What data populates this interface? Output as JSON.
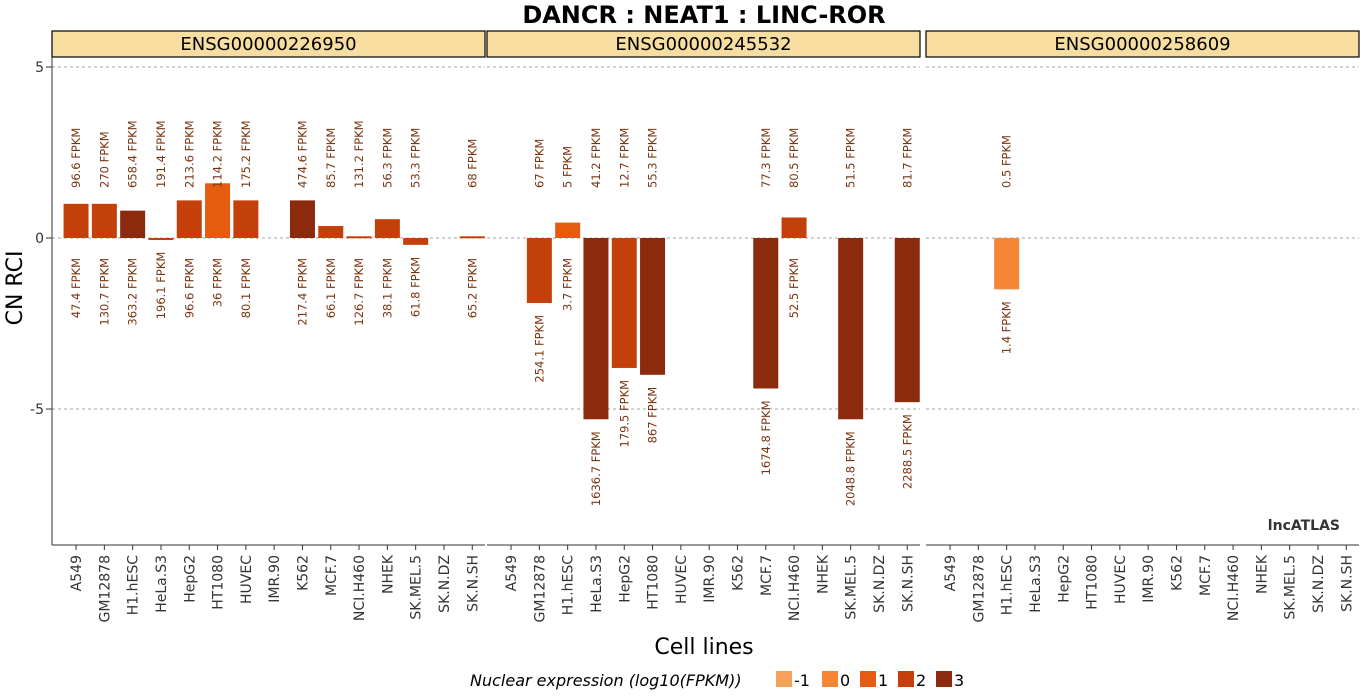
{
  "chart_data": {
    "type": "bar",
    "title": "DANCR : NEAT1 : LINC-ROR",
    "xlabel": "Cell lines",
    "ylabel": "CN RCI",
    "ylim": [
      -9,
      5
    ],
    "yticks": [
      5,
      0,
      -5
    ],
    "ytick_labels": [
      "5",
      "0",
      "-5"
    ],
    "grid": "dashed horizontal at ticks",
    "categories": [
      "A549",
      "GM12878",
      "H1.hESC",
      "HeLa.S3",
      "HepG2",
      "HT1080",
      "HUVEC",
      "IMR.90",
      "K562",
      "MCF.7",
      "NCI.H460",
      "NHEK",
      "SK.MEL.5",
      "SK.N.DZ",
      "SK.N.SH"
    ],
    "panels": [
      {
        "name": "ENSG00000226950",
        "values": [
          1.0,
          1.0,
          0.8,
          -0.05,
          1.1,
          1.6,
          1.1,
          null,
          1.1,
          0.35,
          0.05,
          0.55,
          -0.2,
          null,
          0.05
        ],
        "color_levels": [
          2,
          2,
          3,
          2,
          2,
          1,
          2,
          null,
          3,
          2,
          2,
          2,
          2,
          null,
          2
        ],
        "cyto_labels": [
          "96.6 FPKM",
          "270 FPKM",
          "658.4 FPKM",
          "191.4 FPKM",
          "213.6 FPKM",
          "114.2 FPKM",
          "175.2 FPKM",
          "",
          "474.6 FPKM",
          "85.7 FPKM",
          "131.2 FPKM",
          "56.3 FPKM",
          "53.3 FPKM",
          "",
          "68 FPKM"
        ],
        "nuc_labels": [
          "47.4 FPKM",
          "130.7 FPKM",
          "363.2 FPKM",
          "196.1 FPKM",
          "96.6 FPKM",
          "36 FPKM",
          "80.1 FPKM",
          "",
          "217.4 FPKM",
          "66.1 FPKM",
          "126.7 FPKM",
          "38.1 FPKM",
          "61.8 FPKM",
          "",
          "65.2 FPKM"
        ]
      },
      {
        "name": "ENSG00000245532",
        "values": [
          null,
          -1.9,
          0.45,
          -5.3,
          -3.8,
          -4.0,
          null,
          null,
          null,
          -4.4,
          0.6,
          null,
          -5.3,
          null,
          -4.8
        ],
        "color_levels": [
          null,
          2,
          1,
          3,
          2,
          3,
          null,
          null,
          null,
          3,
          2,
          null,
          3,
          null,
          3
        ],
        "cyto_labels": [
          "",
          "67 FPKM",
          "5 FPKM",
          "41.2 FPKM",
          "12.7 FPKM",
          "55.3 FPKM",
          "",
          "",
          "",
          "77.3 FPKM",
          "80.5 FPKM",
          "",
          "51.5 FPKM",
          "",
          "81.7 FPKM"
        ],
        "nuc_labels": [
          "",
          "254.1 FPKM",
          "3.7 FPKM",
          "1636.7 FPKM",
          "179.5 FPKM",
          "867 FPKM",
          "",
          "",
          "",
          "1674.8 FPKM",
          "52.5 FPKM",
          "",
          "2048.8 FPKM",
          "",
          "2288.5 FPKM"
        ]
      },
      {
        "name": "ENSG00000258609",
        "values": [
          null,
          null,
          -1.5,
          null,
          null,
          null,
          null,
          null,
          null,
          null,
          null,
          null,
          null,
          null,
          null
        ],
        "color_levels": [
          null,
          null,
          0,
          null,
          null,
          null,
          null,
          null,
          null,
          null,
          null,
          null,
          null,
          null,
          null
        ],
        "cyto_labels": [
          "",
          "",
          "0.5 FPKM",
          "",
          "",
          "",
          "",
          "",
          "",
          "",
          "",
          "",
          "",
          "",
          ""
        ],
        "nuc_labels": [
          "",
          "",
          "1.4 FPKM",
          "",
          "",
          "",
          "",
          "",
          "",
          "",
          "",
          "",
          "",
          "",
          ""
        ]
      }
    ],
    "legend": {
      "title": "Nuclear expression (log10(FPKM))",
      "placement": "bottom",
      "items": [
        {
          "label": "-1",
          "color": "#f6a15a"
        },
        {
          "label": "0",
          "color": "#f68536"
        },
        {
          "label": "1",
          "color": "#e55b10"
        },
        {
          "label": "2",
          "color": "#c3400a"
        },
        {
          "label": "3",
          "color": "#8b2a0c"
        }
      ]
    },
    "strip_color": "#f8dda0",
    "watermark": "lncATLAS"
  }
}
